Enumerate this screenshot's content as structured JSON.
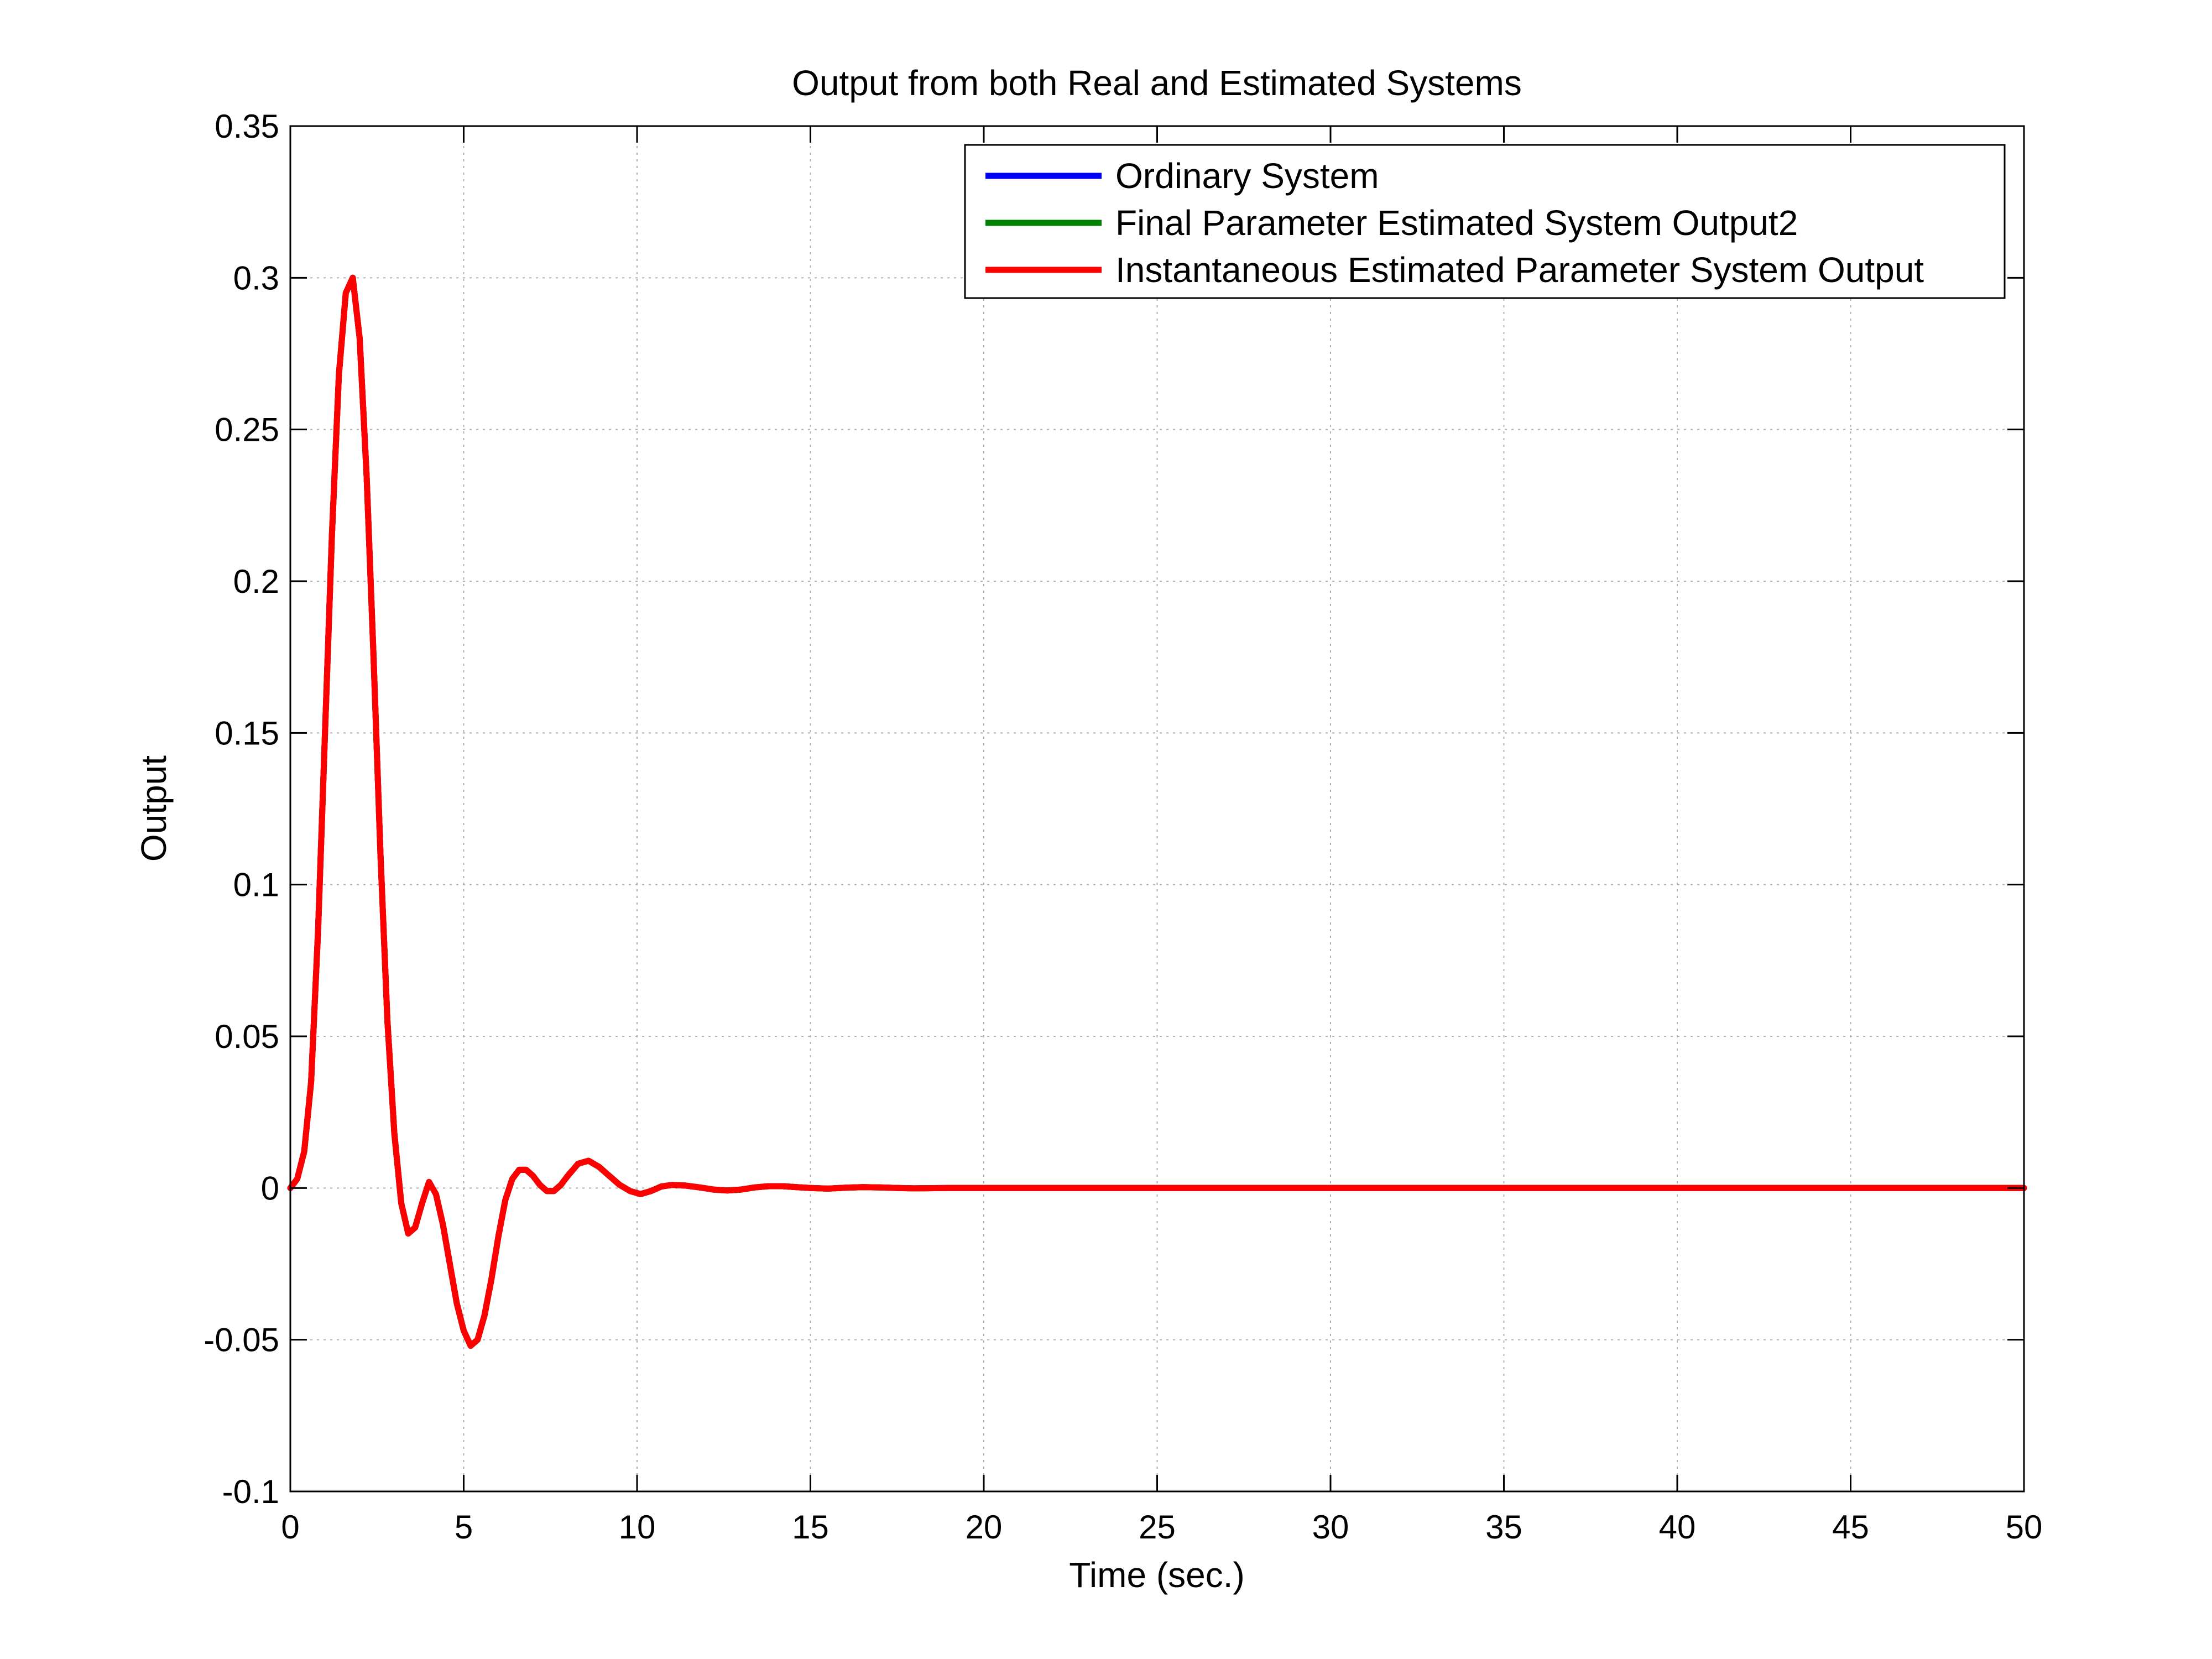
{
  "chart_data": {
    "type": "line",
    "title": "Output from both Real and Estimated Systems",
    "xlabel": "Time (sec.)",
    "ylabel": "Output",
    "xlim": [
      0,
      50
    ],
    "ylim": [
      -0.1,
      0.35
    ],
    "xticks": [
      0,
      5,
      10,
      15,
      20,
      25,
      30,
      35,
      40,
      45,
      50
    ],
    "xtick_labels": [
      "0",
      "5",
      "10",
      "15",
      "20",
      "25",
      "30",
      "35",
      "40",
      "45",
      "50"
    ],
    "yticks": [
      -0.1,
      -0.05,
      0,
      0.05,
      0.1,
      0.15,
      0.2,
      0.25,
      0.3,
      0.35
    ],
    "ytick_labels": [
      "-0.1",
      "-0.05",
      "0",
      "0.05",
      "0.1",
      "0.15",
      "0.2",
      "0.25",
      "0.3",
      "0.35"
    ],
    "grid": true,
    "legend_position": "top-right",
    "x": [
      0,
      0.2,
      0.4,
      0.6,
      0.8,
      1.0,
      1.2,
      1.4,
      1.6,
      1.8,
      2.0,
      2.2,
      2.4,
      2.6,
      2.8,
      3.0,
      3.2,
      3.4,
      3.6,
      3.8,
      4.0,
      4.2,
      4.4,
      4.6,
      4.8,
      5.0,
      5.2,
      5.4,
      5.6,
      5.8,
      6.0,
      6.2,
      6.4,
      6.6,
      6.8,
      7.0,
      7.2,
      7.4,
      7.6,
      7.8,
      8.0,
      8.3,
      8.6,
      8.9,
      9.2,
      9.5,
      9.8,
      10.1,
      10.4,
      10.7,
      11.0,
      11.4,
      11.8,
      12.2,
      12.6,
      13.0,
      13.4,
      13.8,
      14.2,
      14.6,
      15.0,
      15.5,
      16.0,
      16.5,
      17.0,
      17.5,
      18.0,
      19.0,
      20.0,
      21.0,
      22.0,
      25.0,
      30.0,
      35.0,
      40.0,
      45.0,
      50.0
    ],
    "series": [
      {
        "name": "Ordinary System",
        "color": "#0000ff",
        "values": [
          0,
          0.003,
          0.012,
          0.035,
          0.085,
          0.15,
          0.215,
          0.268,
          0.295,
          0.3,
          0.28,
          0.235,
          0.175,
          0.11,
          0.055,
          0.018,
          -0.005,
          -0.015,
          -0.013,
          -0.005,
          0.002,
          -0.002,
          -0.012,
          -0.025,
          -0.038,
          -0.047,
          -0.052,
          -0.05,
          -0.042,
          -0.03,
          -0.016,
          -0.004,
          0.003,
          0.006,
          0.006,
          0.004,
          0.001,
          -0.001,
          -0.001,
          0.001,
          0.004,
          0.008,
          0.009,
          0.007,
          0.004,
          0.001,
          -0.001,
          -0.002,
          -0.001,
          0.0005,
          0.001,
          0.0008,
          0.0002,
          -0.0005,
          -0.0008,
          -0.0005,
          0.0002,
          0.0006,
          0.0006,
          0.0003,
          0,
          -0.0002,
          0.0001,
          0.0003,
          0.0002,
          0,
          -0.0001,
          0,
          0,
          0,
          0,
          0,
          0,
          0,
          0,
          0,
          0
        ]
      },
      {
        "name": "Final Parameter Estimated System Output2",
        "color": "#008000",
        "values": [
          0,
          0.003,
          0.012,
          0.035,
          0.085,
          0.15,
          0.215,
          0.268,
          0.295,
          0.3,
          0.28,
          0.235,
          0.175,
          0.11,
          0.055,
          0.018,
          -0.005,
          -0.015,
          -0.013,
          -0.005,
          0.002,
          -0.002,
          -0.012,
          -0.025,
          -0.038,
          -0.047,
          -0.052,
          -0.05,
          -0.042,
          -0.03,
          -0.016,
          -0.004,
          0.003,
          0.006,
          0.006,
          0.004,
          0.001,
          -0.001,
          -0.001,
          0.001,
          0.004,
          0.008,
          0.009,
          0.007,
          0.004,
          0.001,
          -0.001,
          -0.002,
          -0.001,
          0.0005,
          0.001,
          0.0008,
          0.0002,
          -0.0005,
          -0.0008,
          -0.0005,
          0.0002,
          0.0006,
          0.0006,
          0.0003,
          0,
          -0.0002,
          0.0001,
          0.0003,
          0.0002,
          0,
          -0.0001,
          0,
          0,
          0,
          0,
          0,
          0,
          0,
          0,
          0,
          0
        ]
      },
      {
        "name": "Instantaneous Estimated Parameter System Output",
        "color": "#ff0000",
        "values": [
          0,
          0.003,
          0.012,
          0.035,
          0.085,
          0.15,
          0.215,
          0.268,
          0.295,
          0.3,
          0.28,
          0.235,
          0.175,
          0.11,
          0.055,
          0.018,
          -0.005,
          -0.015,
          -0.013,
          -0.005,
          0.002,
          -0.002,
          -0.012,
          -0.025,
          -0.038,
          -0.047,
          -0.052,
          -0.05,
          -0.042,
          -0.03,
          -0.016,
          -0.004,
          0.003,
          0.006,
          0.006,
          0.004,
          0.001,
          -0.001,
          -0.001,
          0.001,
          0.004,
          0.008,
          0.009,
          0.007,
          0.004,
          0.001,
          -0.001,
          -0.002,
          -0.001,
          0.0005,
          0.001,
          0.0008,
          0.0002,
          -0.0005,
          -0.0008,
          -0.0005,
          0.0002,
          0.0006,
          0.0006,
          0.0003,
          0,
          -0.0002,
          0.0001,
          0.0003,
          0.0002,
          0,
          -0.0001,
          0,
          0,
          0,
          0,
          0,
          0,
          0,
          0,
          0,
          0
        ]
      }
    ]
  }
}
